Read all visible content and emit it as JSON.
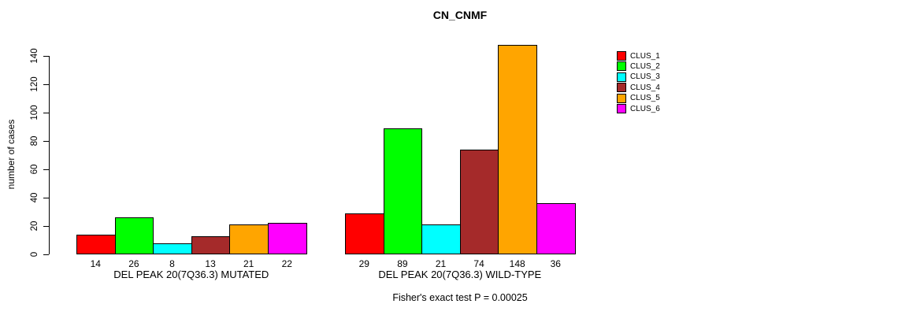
{
  "chart_data": {
    "type": "bar",
    "title": "CN_CNMF",
    "ylabel": "number of cases",
    "yticks": [
      0,
      20,
      40,
      60,
      80,
      100,
      120,
      140
    ],
    "ylim": [
      0,
      148
    ],
    "grid": false,
    "legend_position": "right-outside",
    "series_names": [
      "CLUS_1",
      "CLUS_2",
      "CLUS_3",
      "CLUS_4",
      "CLUS_5",
      "CLUS_6"
    ],
    "series_colors": [
      "#FF0000",
      "#00FF00",
      "#00FFFF",
      "#A52A2A",
      "#FFA500",
      "#FF00FF"
    ],
    "groups": [
      {
        "label": "DEL PEAK 20(7Q36.3) MUTATED",
        "values": [
          14,
          26,
          8,
          13,
          21,
          22
        ]
      },
      {
        "label": "DEL PEAK 20(7Q36.3) WILD-TYPE",
        "values": [
          29,
          89,
          21,
          74,
          148,
          36
        ]
      }
    ],
    "footnote": "Fisher's exact test P = 0.00025"
  },
  "colors": {
    "background": "#FFFFFF",
    "axis": "#000000",
    "bar_border": "#000000",
    "text": "#000000"
  }
}
